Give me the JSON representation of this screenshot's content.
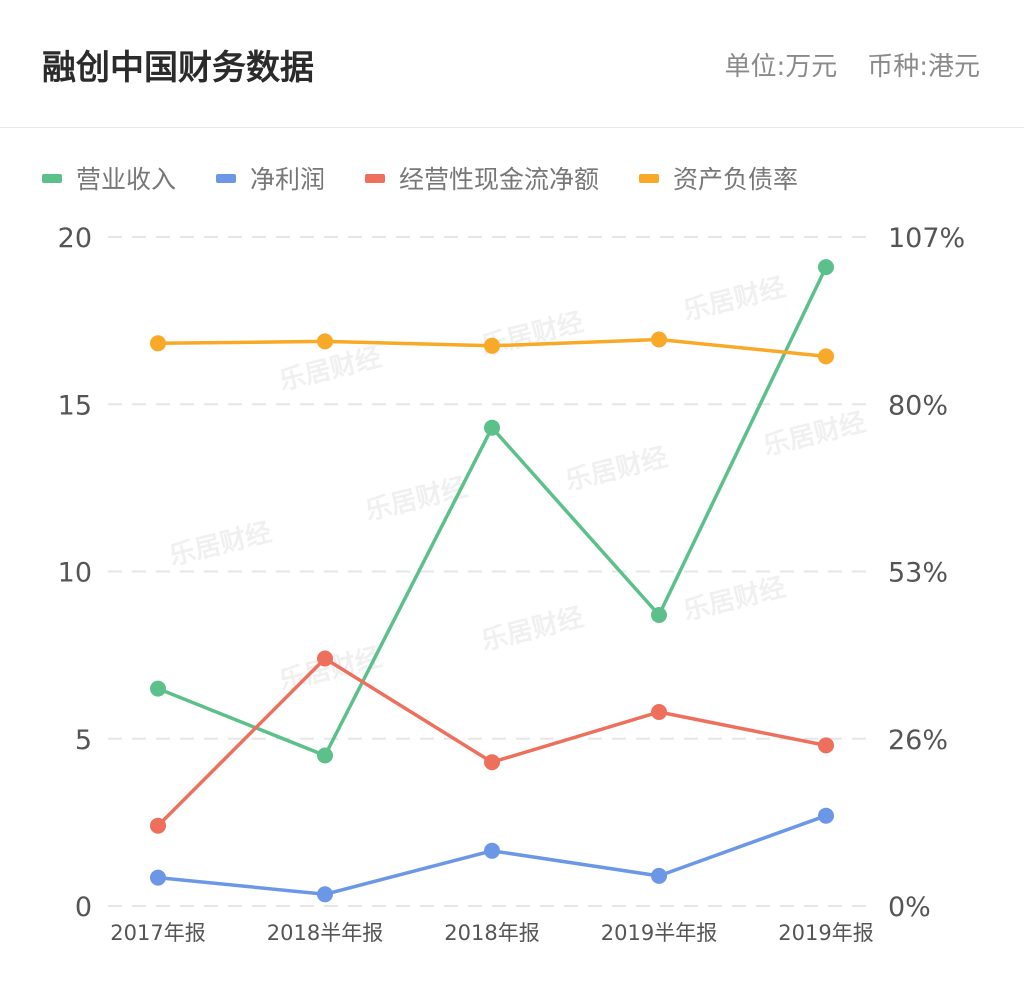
{
  "header": {
    "title": "融创中国财务数据",
    "unit": "单位:万元",
    "currency": "币种:港元"
  },
  "watermark": "乐居财经",
  "chart_data": {
    "type": "line",
    "categories": [
      "2017年报",
      "2018半年报",
      "2018年报",
      "2019半年报",
      "2019年报"
    ],
    "y_left": {
      "ticks": [
        "0",
        "5",
        "10",
        "15",
        "20"
      ],
      "range": [
        0,
        20
      ]
    },
    "y_right": {
      "ticks": [
        "0%",
        "26%",
        "53%",
        "80%",
        "107%"
      ],
      "range": [
        0,
        107
      ]
    },
    "grid": true,
    "legend_position": "top-left",
    "series": [
      {
        "name": "营业收入",
        "axis": "left",
        "color": "#5cc08a",
        "values": [
          6.5,
          4.5,
          14.3,
          8.7,
          19.1
        ]
      },
      {
        "name": "净利润",
        "axis": "left",
        "color": "#6b97e6",
        "values": [
          0.85,
          0.35,
          1.65,
          0.9,
          2.7
        ]
      },
      {
        "name": "经营性现金流净额",
        "axis": "left",
        "color": "#ee6f5b",
        "values": [
          2.4,
          7.4,
          4.3,
          5.8,
          4.8
        ]
      },
      {
        "name": "资产负债率",
        "axis": "right",
        "color": "#f8a928",
        "values": [
          90.0,
          90.3,
          89.6,
          90.6,
          87.9
        ]
      }
    ]
  }
}
